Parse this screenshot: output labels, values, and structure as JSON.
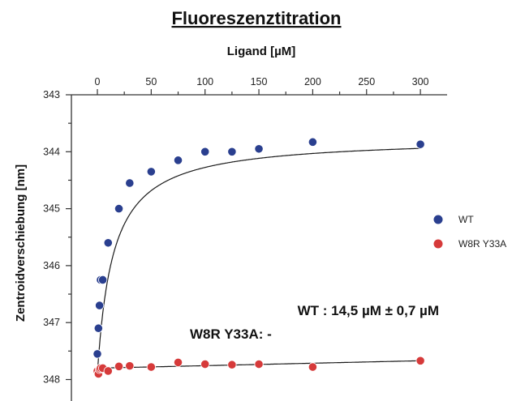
{
  "chart_data": {
    "type": "scatter",
    "title": "Fluoreszenztitration",
    "xlabel": "Ligand [µM]",
    "ylabel": "Zentroidverschiebung [nm]",
    "x_axis_position": "top",
    "y_axis_inverted": true,
    "xlim": [
      -5,
      305
    ],
    "ylim": [
      343,
      348.45
    ],
    "x_ticks": [
      0,
      50,
      100,
      150,
      200,
      250,
      300
    ],
    "x_tick_labels": [
      "0",
      "50",
      "100",
      "150",
      "200",
      "250",
      "300"
    ],
    "y_ticks": [
      343,
      344,
      345,
      346,
      347,
      348
    ],
    "y_tick_labels": [
      "343",
      "344",
      "345",
      "346",
      "347",
      "348"
    ],
    "legend_position": "right",
    "series": [
      {
        "name": "WT",
        "color": "#2a3f8f",
        "x": [
          0,
          1,
          2,
          3,
          5,
          10,
          20,
          30,
          50,
          75,
          100,
          125,
          150,
          200,
          300
        ],
        "y": [
          347.55,
          347.1,
          346.7,
          346.25,
          346.25,
          345.6,
          345.0,
          344.55,
          344.35,
          344.15,
          344.0,
          344.0,
          343.95,
          343.83,
          343.87
        ]
      },
      {
        "name": "W8R Y33A",
        "color": "#d63a3a",
        "x": [
          0,
          1,
          2,
          3,
          5,
          10,
          20,
          30,
          50,
          75,
          100,
          125,
          150,
          200,
          300
        ],
        "y": [
          347.85,
          347.9,
          347.82,
          347.8,
          347.8,
          347.85,
          347.77,
          347.76,
          347.78,
          347.7,
          347.73,
          347.74,
          347.73,
          347.78,
          347.67
        ]
      }
    ],
    "fits": [
      {
        "series": "WT",
        "model": "hyperbolic",
        "y0": 347.9,
        "amplitude": 4.15,
        "kd": 14.5
      },
      {
        "series": "W8R Y33A",
        "model": "linear",
        "y_start": 347.8,
        "y_end": 347.67
      }
    ],
    "annotations": [
      "WT : 14,5 µM ± 0,7 µM",
      "W8R Y33A: -"
    ]
  }
}
